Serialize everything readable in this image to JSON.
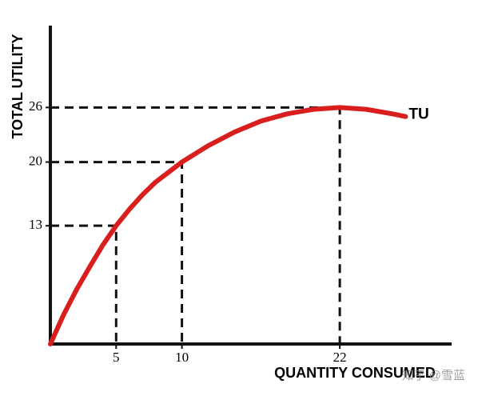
{
  "chart_data": {
    "type": "line",
    "x_label": "QUANTITY CONSUMED",
    "y_label": "TOTAL UTILITY",
    "x": [
      0,
      1,
      2,
      3,
      4,
      5,
      6,
      7,
      8,
      10,
      12,
      14,
      16,
      18,
      20,
      22,
      24,
      26,
      27
    ],
    "series": [
      {
        "name": "TU",
        "color": "#d91e1e",
        "values": [
          0,
          3.2,
          6,
          8.5,
          10.9,
          13,
          14.8,
          16.4,
          17.8,
          20,
          21.8,
          23.3,
          24.5,
          25.3,
          25.8,
          26,
          25.8,
          25.3,
          25
        ]
      }
    ],
    "xlim": [
      0,
      30.5
    ],
    "ylim": [
      0,
      35
    ],
    "xticks": [
      5,
      10,
      22
    ],
    "yticks": [
      13,
      20,
      26
    ],
    "watermark": "知乎 @雪蓝"
  }
}
